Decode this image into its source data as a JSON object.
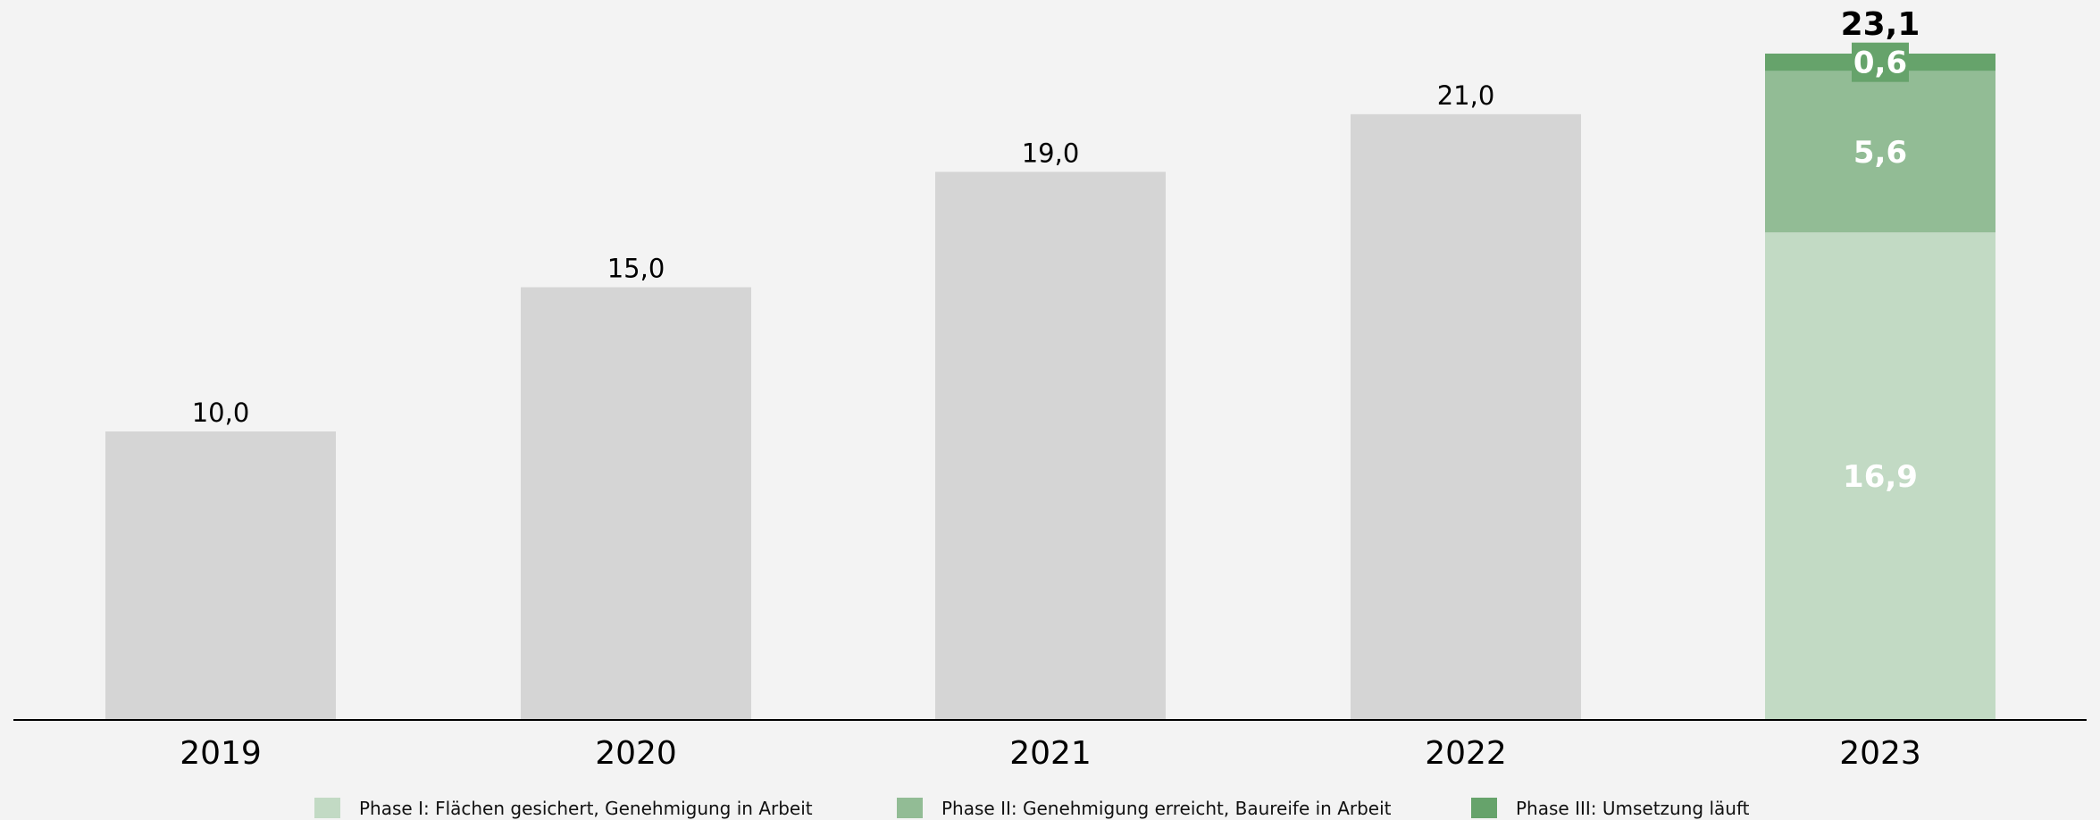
{
  "chart_data": {
    "type": "bar",
    "categories": [
      "2019",
      "2020",
      "2021",
      "2022",
      "2023"
    ],
    "ylim": [
      0,
      23.1
    ],
    "grid": false,
    "legend_position": "bottom",
    "history": {
      "values": [
        10.0,
        15.0,
        19.0,
        21.0
      ],
      "labels": [
        "10,0",
        "15,0",
        "19,0",
        "21,0"
      ],
      "color": "#d5d5d5"
    },
    "series": [
      {
        "name": "Phase I: Flächen gesichert, Genehmigung in Arbeit",
        "category": "2023",
        "value": 16.9,
        "label": "16,9",
        "color": "#c2dac4"
      },
      {
        "name": "Phase II: Genehmigung erreicht, Baureife in Arbeit",
        "category": "2023",
        "value": 5.6,
        "label": "5,6",
        "color": "#92bc95"
      },
      {
        "name": "Phase III: Umsetzung läuft",
        "category": "2023",
        "value": 0.6,
        "label": "0,6",
        "color": "#66a36b"
      }
    ],
    "total": {
      "category": "2023",
      "value": 23.1,
      "label": "23,1"
    }
  }
}
